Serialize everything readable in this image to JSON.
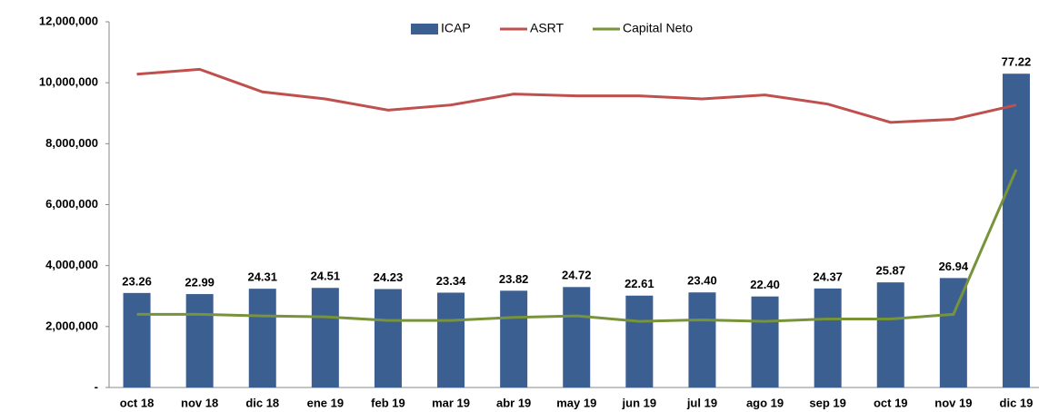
{
  "chart_data": {
    "type": "bar-line",
    "categories": [
      "oct 18",
      "nov 18",
      "dic 18",
      "ene 19",
      "feb 19",
      "mar 19",
      "abr 19",
      "may 19",
      "jun 19",
      "jul 19",
      "ago 19",
      "sep 19",
      "oct 19",
      "nov 19",
      "dic 19"
    ],
    "series": [
      {
        "name": "ICAP",
        "type": "bar",
        "axis": "y2",
        "color": "#3b5f91",
        "values": [
          23.26,
          22.99,
          24.31,
          24.51,
          24.23,
          23.34,
          23.82,
          24.72,
          22.61,
          23.4,
          22.4,
          24.37,
          25.87,
          26.94,
          77.22
        ],
        "value_labels": [
          "23.26",
          "22.99",
          "24.31",
          "24.51",
          "24.23",
          "23.34",
          "23.82",
          "24.72",
          "22.61",
          "23.40",
          "22.40",
          "24.37",
          "25.87",
          "26.94",
          "77.22"
        ]
      },
      {
        "name": "ASRT",
        "type": "line",
        "color": "#c0504d",
        "values": [
          10280000,
          10440000,
          9700000,
          9470000,
          9100000,
          9270000,
          9630000,
          9570000,
          9570000,
          9470000,
          9600000,
          9300000,
          8700000,
          8800000,
          9270000
        ]
      },
      {
        "name": "Capital Neto",
        "type": "line",
        "color": "#77933c",
        "values": [
          2400000,
          2400000,
          2350000,
          2320000,
          2200000,
          2200000,
          2300000,
          2350000,
          2170000,
          2220000,
          2170000,
          2250000,
          2250000,
          2400000,
          7150000
        ]
      }
    ],
    "ylim": [
      0,
      12000000
    ],
    "yticks": [
      {
        "value": 0,
        "label": "-"
      },
      {
        "value": 2000000,
        "label": "2,000,000"
      },
      {
        "value": 4000000,
        "label": "4,000,000"
      },
      {
        "value": 6000000,
        "label": "6,000,000"
      },
      {
        "value": 8000000,
        "label": "8,000,000"
      },
      {
        "value": 10000000,
        "label": "10,000,000"
      },
      {
        "value": 12000000,
        "label": "12,000,000"
      }
    ],
    "y2lim": [
      0,
      90
    ],
    "legend": "top"
  }
}
